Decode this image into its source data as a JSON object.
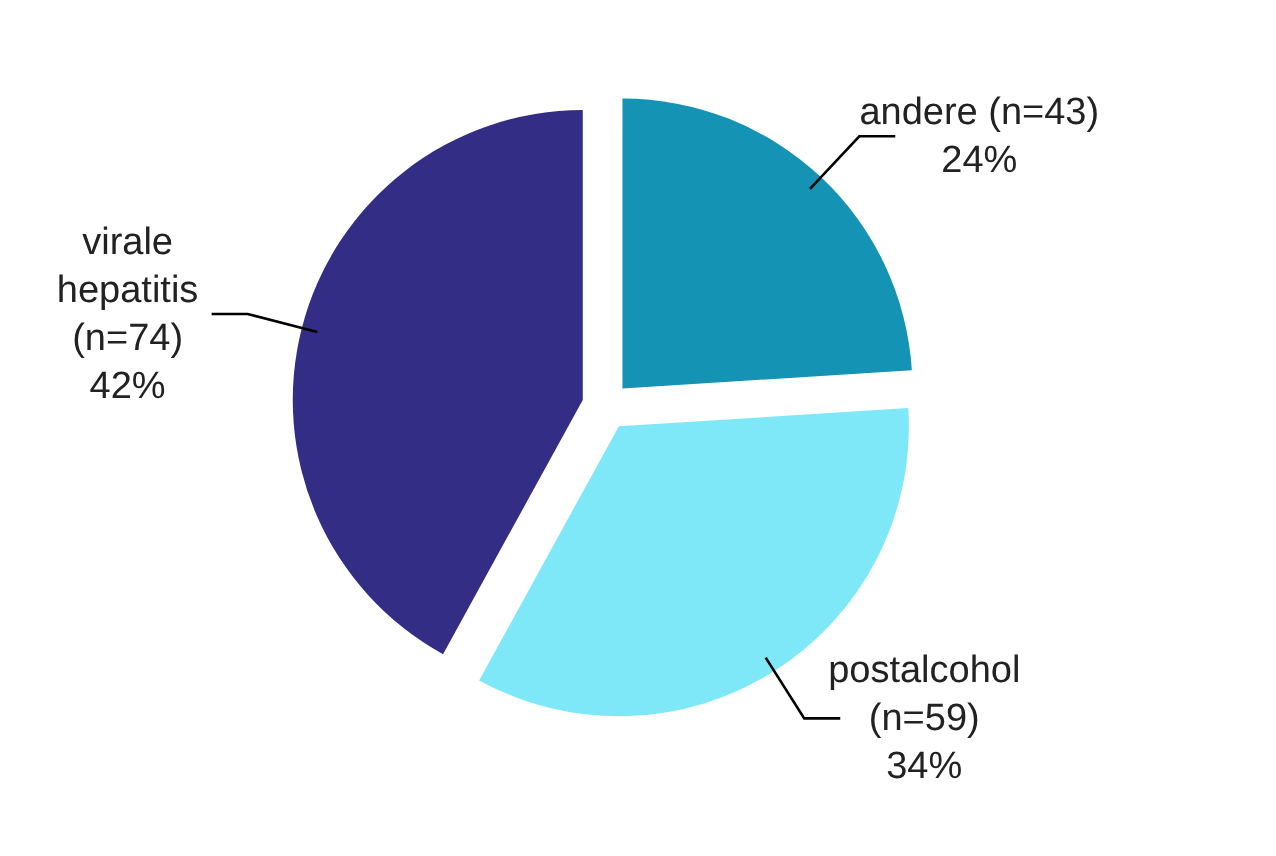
{
  "chart_data": {
    "type": "pie",
    "categories": [
      "andere (n=43)",
      "postalcohol (n=59)",
      "virale hepatitis (n=74)"
    ],
    "values": [
      24,
      34,
      42
    ],
    "value_labels": [
      "24%",
      "34%",
      "42%"
    ],
    "colors": [
      "#1493b4",
      "#7fe8f8",
      "#332d85"
    ],
    "legend": false
  }
}
